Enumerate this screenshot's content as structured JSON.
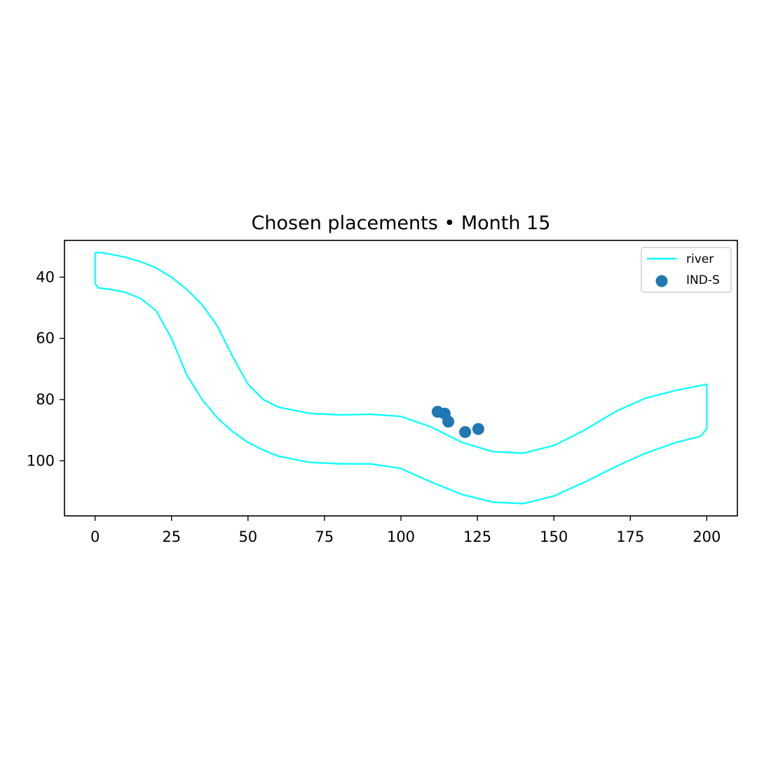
{
  "chart_data": {
    "type": "line",
    "title": "Chosen placements • Month 15",
    "xlabel": "",
    "ylabel": "",
    "xlim": [
      -10,
      210
    ],
    "ylim": [
      118,
      28
    ],
    "y_inverted": true,
    "grid": false,
    "legend_placement": "top-right",
    "x_ticks": [
      0,
      25,
      50,
      75,
      100,
      125,
      150,
      175,
      200
    ],
    "y_ticks": [
      40,
      60,
      80,
      100
    ],
    "series": [
      {
        "name": "river",
        "kind": "line",
        "color": "#00ffff",
        "x": [
          0,
          2,
          5,
          10,
          15,
          20,
          25,
          30,
          35,
          40,
          45,
          50,
          55,
          60,
          70,
          80,
          90,
          100,
          110,
          120,
          130,
          140,
          150,
          160,
          170,
          180,
          190,
          200,
          200,
          198,
          190,
          180,
          170,
          160,
          150,
          140,
          130,
          120,
          110,
          100,
          90,
          80,
          70,
          60,
          55,
          50,
          45,
          40,
          35,
          30,
          25,
          20,
          15,
          10,
          5,
          1,
          0,
          0
        ],
        "y": [
          32,
          32,
          32.5,
          33.5,
          35,
          37,
          40,
          44,
          49,
          56,
          66,
          75,
          80,
          82.5,
          84.5,
          85,
          84.8,
          85.5,
          89,
          94,
          97,
          97.5,
          95,
          90,
          84,
          79.5,
          77,
          75,
          89.5,
          92,
          94,
          97.5,
          102,
          107,
          111.5,
          114,
          113.5,
          111,
          107,
          102.5,
          101,
          101,
          100.5,
          98.5,
          96.5,
          94,
          90.5,
          86,
          80,
          72,
          60,
          51,
          47,
          45,
          44,
          43.5,
          42,
          32
        ]
      },
      {
        "name": "IND-S",
        "kind": "scatter",
        "color": "#1f77b4",
        "x": [
          112,
          114.3,
          115.5,
          121,
          125.3
        ],
        "y": [
          84,
          84.6,
          87.2,
          90.6,
          89.6
        ]
      }
    ]
  }
}
